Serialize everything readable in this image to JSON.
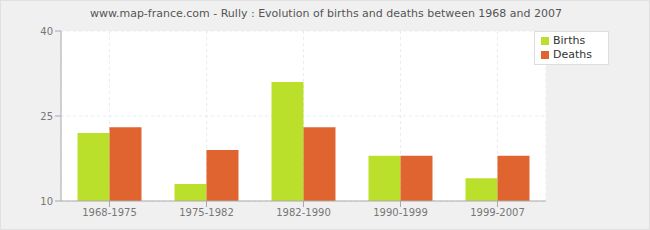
{
  "chart_data": {
    "type": "bar",
    "title": "www.map-france.com - Rully : Evolution of births and deaths between 1968 and 2007",
    "categories": [
      "1968-1975",
      "1975-1982",
      "1982-1990",
      "1990-1999",
      "1999-2007"
    ],
    "series": [
      {
        "name": "Births",
        "color": "#bbe02b",
        "values": [
          22,
          13,
          31,
          18,
          14
        ]
      },
      {
        "name": "Deaths",
        "color": "#e0642f",
        "values": [
          23,
          19,
          23,
          18,
          18
        ]
      }
    ],
    "ylim": [
      10,
      40
    ],
    "yticks": [
      10,
      25,
      40
    ],
    "grid": true,
    "legend": "top-right"
  }
}
